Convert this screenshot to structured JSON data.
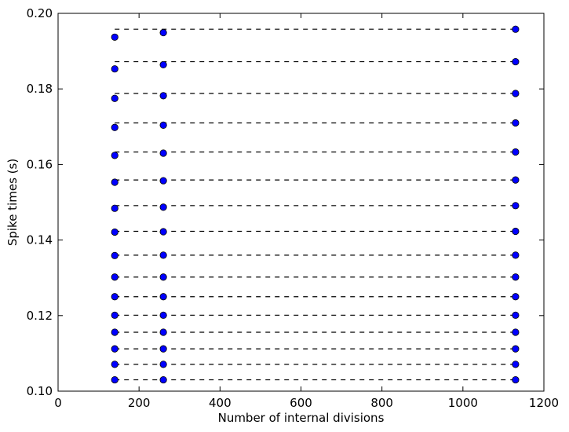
{
  "chart_data": {
    "type": "scatter",
    "title": "",
    "xlabel": "Number of internal divisions",
    "ylabel": "Spike times (s)",
    "xlim": [
      0,
      1200
    ],
    "ylim": [
      0.1,
      0.2
    ],
    "xticks": [
      0,
      200,
      400,
      600,
      800,
      1000,
      1200
    ],
    "xtick_labels": [
      "0",
      "200",
      "400",
      "600",
      "800",
      "1000",
      "1200"
    ],
    "yticks": [
      0.1,
      0.12,
      0.14,
      0.16,
      0.18,
      0.2
    ],
    "ytick_labels": [
      "0.10",
      "0.12",
      "0.14",
      "0.16",
      "0.18",
      "0.20"
    ],
    "grid": false,
    "marker_color": "#0000ff",
    "line_color": "#000000",
    "reference_lines": {
      "style": "dashed",
      "x_range": [
        140,
        1130
      ],
      "y": [
        0.103,
        0.1071,
        0.1112,
        0.1156,
        0.1201,
        0.125,
        0.1302,
        0.136,
        0.1423,
        0.1491,
        0.1559,
        0.1633,
        0.171,
        0.1788,
        0.1872,
        0.1958
      ]
    },
    "series": [
      {
        "x": 140,
        "y": [
          0.103,
          0.1071,
          0.1112,
          0.1156,
          0.1201,
          0.125,
          0.1302,
          0.1359,
          0.1421,
          0.1484,
          0.1553,
          0.1624,
          0.1698,
          0.1775,
          0.1853,
          0.1937
        ]
      },
      {
        "x": 260,
        "y": [
          0.103,
          0.1071,
          0.1112,
          0.1156,
          0.1201,
          0.125,
          0.1302,
          0.136,
          0.1422,
          0.1487,
          0.1557,
          0.163,
          0.1704,
          0.1782,
          0.1864,
          0.1949
        ]
      },
      {
        "x": 1130,
        "y": [
          0.103,
          0.1071,
          0.1112,
          0.1156,
          0.1201,
          0.125,
          0.1302,
          0.136,
          0.1423,
          0.1491,
          0.1559,
          0.1633,
          0.171,
          0.1788,
          0.1872,
          0.1958
        ]
      }
    ]
  }
}
